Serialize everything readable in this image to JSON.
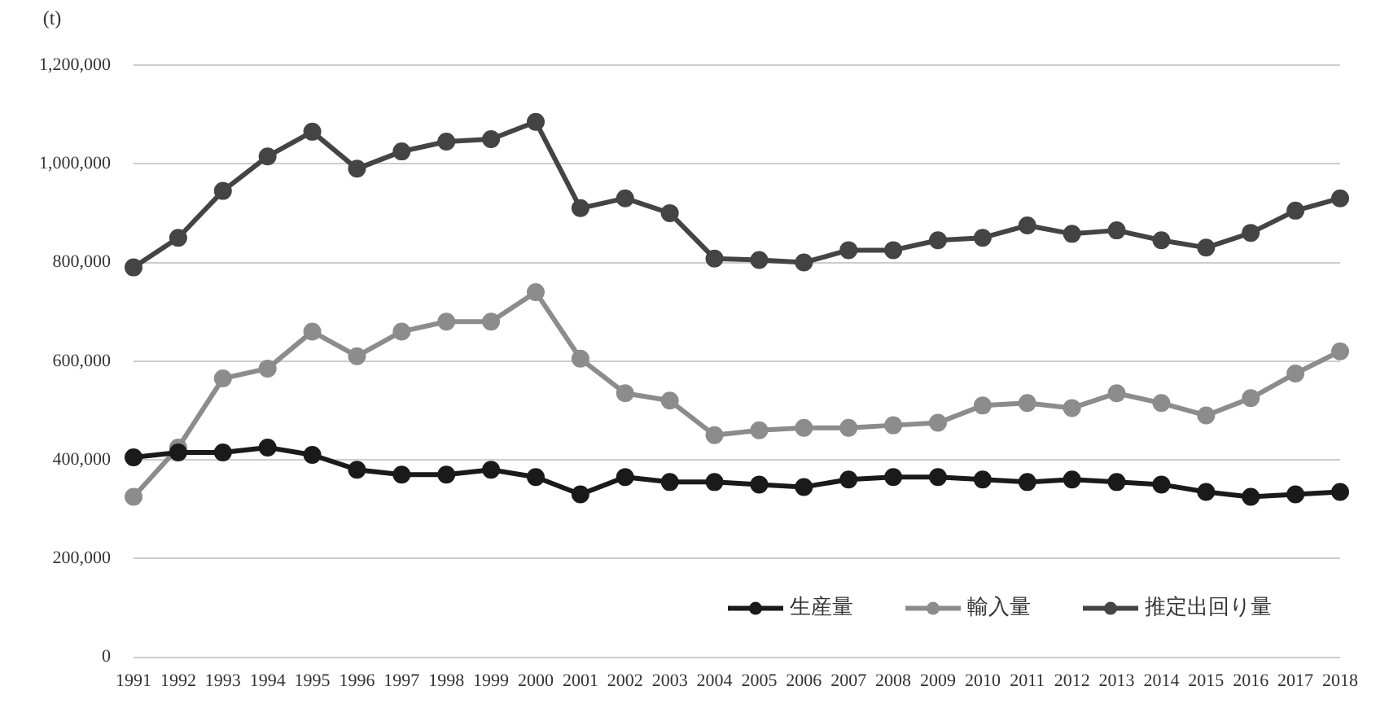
{
  "chart_data": {
    "type": "line",
    "ylabel": "(t)",
    "categories": [
      "1991",
      "1992",
      "1993",
      "1994",
      "1995",
      "1996",
      "1997",
      "1998",
      "1999",
      "2000",
      "2001",
      "2002",
      "2003",
      "2004",
      "2005",
      "2006",
      "2007",
      "2008",
      "2009",
      "2010",
      "2011",
      "2012",
      "2013",
      "2014",
      "2015",
      "2016",
      "2017",
      "2018"
    ],
    "series": [
      {
        "name": "生産量",
        "color": "#1a1a1a",
        "values": [
          405000,
          415000,
          415000,
          425000,
          410000,
          380000,
          370000,
          370000,
          380000,
          365000,
          330000,
          365000,
          355000,
          355000,
          350000,
          345000,
          360000,
          365000,
          365000,
          360000,
          355000,
          360000,
          355000,
          350000,
          335000,
          325000,
          330000,
          335000
        ]
      },
      {
        "name": "輸入量",
        "color": "#8c8c8c",
        "values": [
          325000,
          425000,
          565000,
          585000,
          660000,
          610000,
          660000,
          680000,
          680000,
          740000,
          605000,
          535000,
          520000,
          450000,
          460000,
          465000,
          465000,
          470000,
          475000,
          510000,
          515000,
          505000,
          535000,
          515000,
          490000,
          525000,
          575000,
          620000
        ]
      },
      {
        "name": "推定出回り量",
        "color": "#444444",
        "values": [
          790000,
          850000,
          945000,
          1015000,
          1065000,
          990000,
          1025000,
          1045000,
          1050000,
          1085000,
          910000,
          930000,
          900000,
          808000,
          805000,
          800000,
          825000,
          825000,
          845000,
          850000,
          875000,
          858000,
          865000,
          845000,
          830000,
          860000,
          905000,
          930000
        ]
      }
    ],
    "ylim": [
      0,
      1200000
    ],
    "yticks": [
      {
        "value": 0,
        "label": "0"
      },
      {
        "value": 200000,
        "label": "200,000"
      },
      {
        "value": 400000,
        "label": "400,000"
      },
      {
        "value": 600000,
        "label": "600,000"
      },
      {
        "value": 800000,
        "label": "800,000"
      },
      {
        "value": 1000000,
        "label": "1,000,000"
      },
      {
        "value": 1200000,
        "label": "1,200,000"
      }
    ],
    "grid": "y",
    "legend": "bottom right",
    "marker": "circle",
    "line_style": "solid"
  }
}
